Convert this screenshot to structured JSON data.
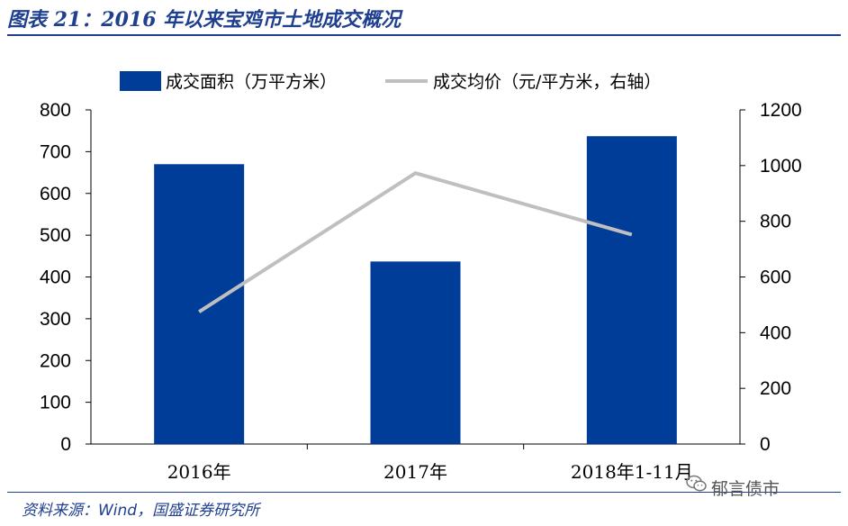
{
  "header": {
    "title": "图表 21：2016 年以来宝鸡市土地成交概况"
  },
  "footer": {
    "source": "资料来源：Wind，国盛证券研究所",
    "watermark": "郁言债市",
    "watermark_icon": "wechat-icon"
  },
  "chart_data": {
    "type": "bar",
    "categories": [
      "2016年",
      "2017年",
      "2018年1-11月"
    ],
    "series": [
      {
        "name": "成交面积（万平方米）",
        "type": "bar",
        "axis": "left",
        "color": "#003d99",
        "values": [
          670,
          437,
          737
        ]
      },
      {
        "name": "成交均价（元/平方米，右轴）",
        "type": "line",
        "axis": "right",
        "color": "#bfbfbf",
        "values": [
          475,
          973,
          752
        ]
      }
    ],
    "y_left": {
      "ylim": [
        0,
        800
      ],
      "ticks": [
        0,
        100,
        200,
        300,
        400,
        500,
        600,
        700,
        800
      ]
    },
    "y_right": {
      "ylim": [
        0,
        1200
      ],
      "ticks": [
        0,
        200,
        400,
        600,
        800,
        1000,
        1200
      ]
    },
    "grid": false,
    "legend": "top"
  }
}
